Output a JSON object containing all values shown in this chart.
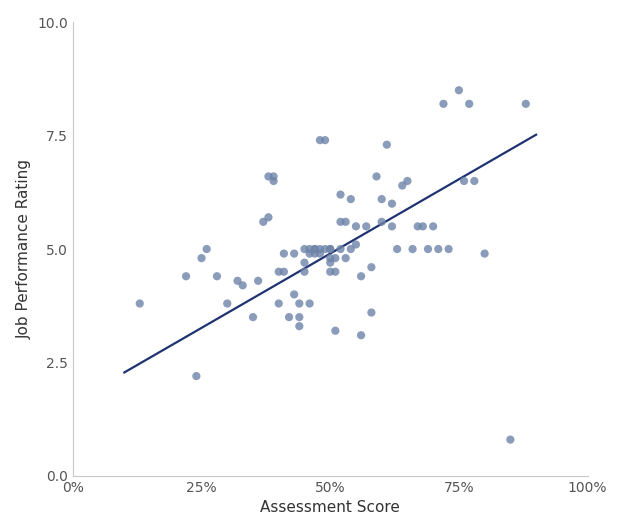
{
  "x_points": [
    0.13,
    0.22,
    0.24,
    0.25,
    0.26,
    0.28,
    0.3,
    0.32,
    0.33,
    0.35,
    0.36,
    0.37,
    0.38,
    0.38,
    0.39,
    0.39,
    0.4,
    0.4,
    0.41,
    0.41,
    0.42,
    0.43,
    0.43,
    0.44,
    0.44,
    0.44,
    0.45,
    0.45,
    0.45,
    0.46,
    0.46,
    0.46,
    0.47,
    0.47,
    0.47,
    0.48,
    0.48,
    0.48,
    0.49,
    0.49,
    0.5,
    0.5,
    0.5,
    0.5,
    0.5,
    0.51,
    0.51,
    0.51,
    0.52,
    0.52,
    0.52,
    0.53,
    0.53,
    0.54,
    0.54,
    0.55,
    0.55,
    0.56,
    0.56,
    0.57,
    0.58,
    0.58,
    0.59,
    0.6,
    0.6,
    0.61,
    0.62,
    0.62,
    0.63,
    0.64,
    0.65,
    0.66,
    0.67,
    0.68,
    0.69,
    0.7,
    0.71,
    0.72,
    0.73,
    0.75,
    0.76,
    0.77,
    0.78,
    0.8,
    0.85,
    0.88
  ],
  "y_points": [
    3.8,
    4.4,
    2.2,
    4.8,
    5.0,
    4.4,
    3.8,
    4.3,
    4.2,
    3.5,
    4.3,
    5.6,
    5.7,
    6.6,
    6.5,
    6.6,
    3.8,
    4.5,
    4.9,
    4.5,
    3.5,
    4.0,
    4.9,
    3.8,
    3.3,
    3.5,
    5.0,
    4.7,
    4.5,
    4.9,
    5.0,
    3.8,
    4.9,
    5.0,
    5.0,
    5.0,
    4.9,
    7.4,
    7.4,
    5.0,
    4.5,
    4.8,
    5.0,
    5.0,
    4.7,
    3.2,
    4.5,
    4.8,
    5.0,
    5.6,
    6.2,
    4.8,
    5.6,
    6.1,
    5.0,
    5.5,
    5.1,
    3.1,
    4.4,
    5.5,
    4.6,
    3.6,
    6.6,
    5.6,
    6.1,
    7.3,
    6.0,
    5.5,
    5.0,
    6.4,
    6.5,
    5.0,
    5.5,
    5.5,
    5.0,
    5.5,
    5.0,
    8.2,
    5.0,
    8.5,
    6.5,
    8.2,
    6.5,
    4.9,
    0.8,
    8.2
  ],
  "dot_color": "#6d84a8",
  "dot_alpha": 0.8,
  "dot_size": 35,
  "line_color": "#1f3373",
  "line_width": 1.6,
  "regression_x0": 0.1,
  "regression_y0": 2.28,
  "regression_x1": 0.9,
  "regression_y1": 7.52,
  "xlabel": "Assessment Score",
  "ylabel": "Job Performance Rating",
  "xlim": [
    0.0,
    1.0
  ],
  "ylim": [
    0.0,
    10.0
  ],
  "xticks": [
    0.0,
    0.25,
    0.5,
    0.75,
    1.0
  ],
  "yticks": [
    0.0,
    2.5,
    5.0,
    7.5,
    10.0
  ],
  "background_color": "#ffffff",
  "spine_color": "#c8c8c8",
  "tick_label_color": "#555555",
  "axis_label_color": "#333333",
  "label_fontsize": 11,
  "tick_fontsize": 10
}
